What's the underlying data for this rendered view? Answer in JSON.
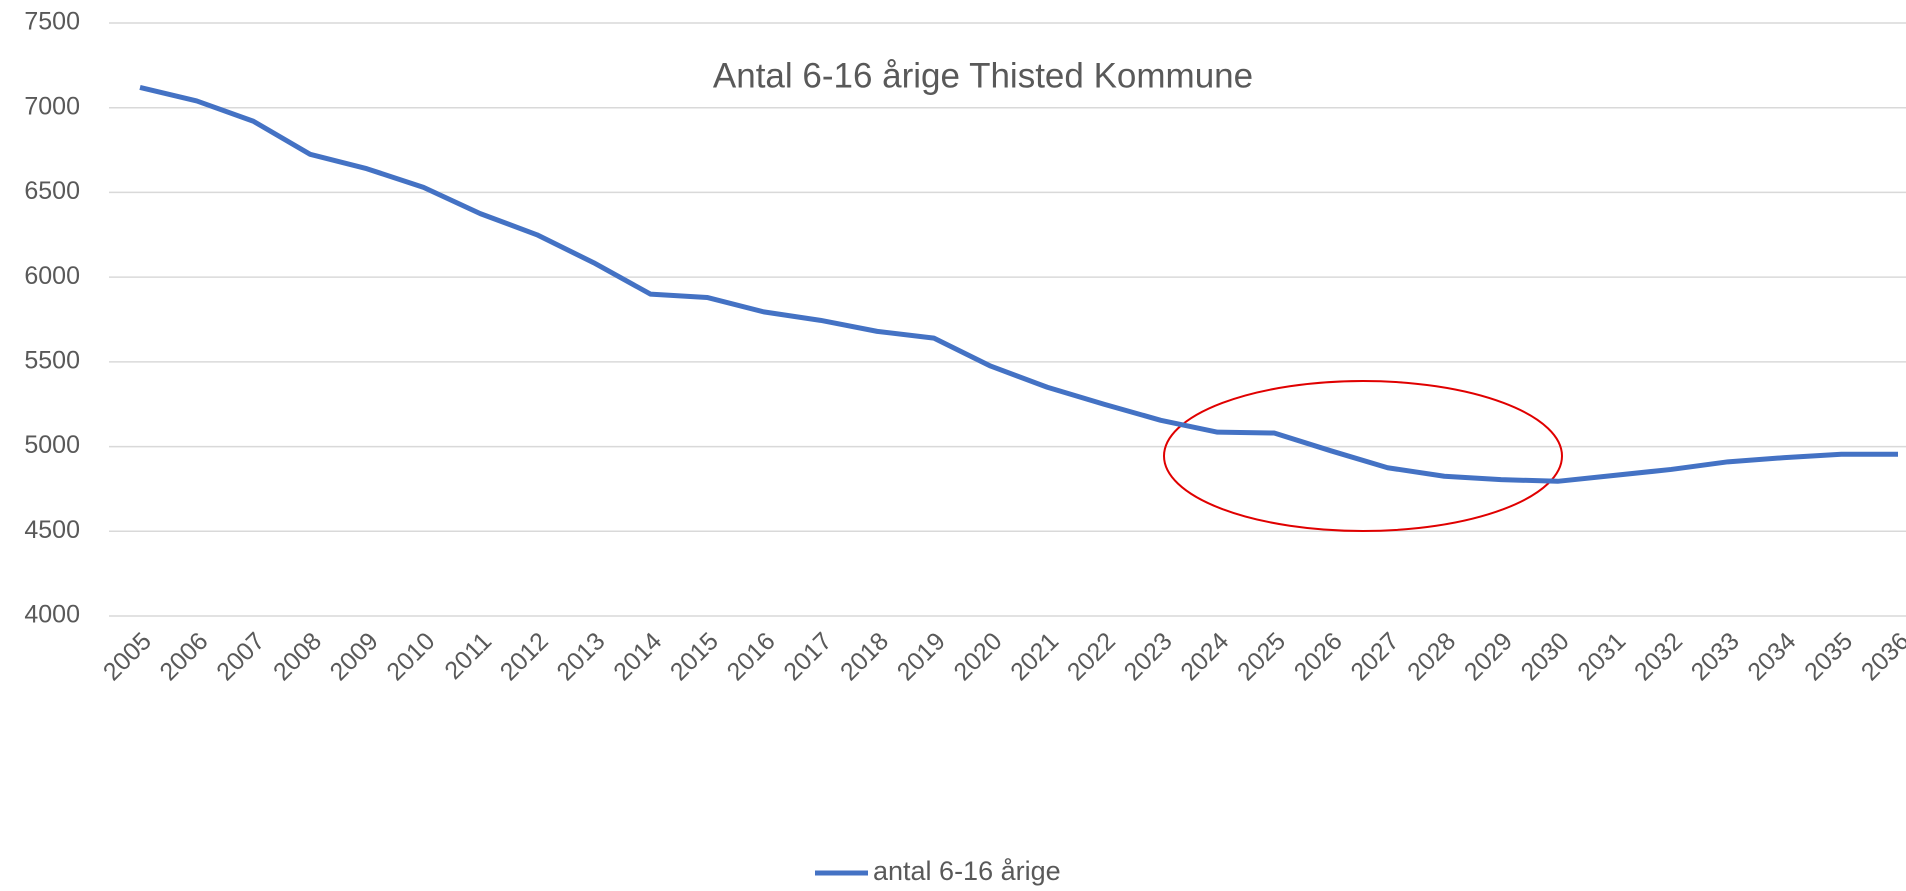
{
  "chart_data": {
    "type": "line",
    "title": "Antal 6-16 årige Thisted Kommune",
    "categories": [
      "2005",
      "2006",
      "2007",
      "2008",
      "2009",
      "2010",
      "2011",
      "2012",
      "2013",
      "2014",
      "2015",
      "2016",
      "2017",
      "2018",
      "2019",
      "2020",
      "2021",
      "2022",
      "2023",
      "2024",
      "2025",
      "2026",
      "2027",
      "2028",
      "2029",
      "2030",
      "2031",
      "2032",
      "2033",
      "2034",
      "2035",
      "2036"
    ],
    "series": [
      {
        "name": "antal 6-16 årige",
        "color": "#4472c4",
        "values": [
          7120,
          7040,
          6920,
          6725,
          6640,
          6530,
          6375,
          6250,
          6085,
          5900,
          5880,
          5795,
          5745,
          5680,
          5640,
          5475,
          5350,
          5250,
          5155,
          5085,
          5080,
          4975,
          4875,
          4825,
          4805,
          4795,
          4830,
          4865,
          4910,
          4935,
          4955,
          4955
        ]
      }
    ],
    "ylim": [
      4000,
      7500
    ],
    "yticks": [
      4000,
      4500,
      5000,
      5500,
      6000,
      6500,
      7000,
      7500
    ],
    "grid": true,
    "legend": "bottom"
  }
}
